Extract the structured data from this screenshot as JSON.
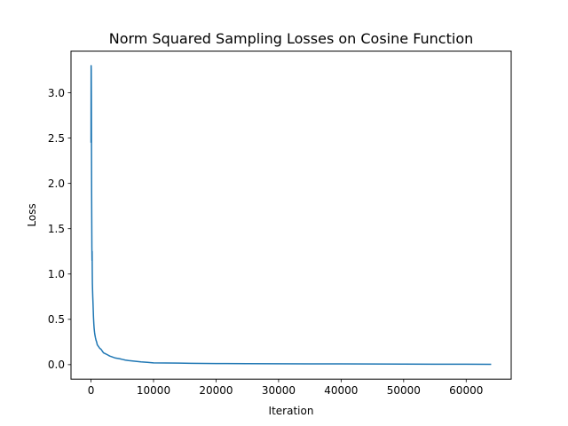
{
  "chart_data": {
    "type": "line",
    "title": "Norm Squared Sampling Losses on Cosine Function",
    "xlabel": "Iteration",
    "ylabel": "Loss",
    "xlim": [
      -3200,
      67200
    ],
    "ylim": [
      -0.16,
      3.46
    ],
    "xticks": [
      0,
      10000,
      20000,
      30000,
      40000,
      50000,
      60000
    ],
    "xtick_labels": [
      "0",
      "10000",
      "20000",
      "30000",
      "40000",
      "50000",
      "60000"
    ],
    "yticks": [
      0.0,
      0.5,
      1.0,
      1.5,
      2.0,
      2.5,
      3.0
    ],
    "ytick_labels": [
      "0.0",
      "0.5",
      "1.0",
      "1.5",
      "2.0",
      "2.5",
      "3.0"
    ],
    "grid": false,
    "legend": "none",
    "series": [
      {
        "color": "#1f77b4",
        "x": [
          0,
          20,
          40,
          60,
          80,
          100,
          120,
          140,
          160,
          180,
          200,
          220,
          250,
          280,
          320,
          360,
          400,
          450,
          500,
          560,
          620,
          700,
          800,
          900,
          1000,
          1200,
          1400,
          1600,
          1800,
          2000,
          2300,
          2600,
          3000,
          3400,
          3800,
          4200,
          4600,
          5000,
          5500,
          6000,
          6500,
          7000,
          8000,
          9000,
          10000,
          12000,
          14000,
          16000,
          18000,
          20000,
          25000,
          30000,
          35000,
          40000,
          45000,
          50000,
          55000,
          60000,
          64000
        ],
        "y": [
          2.45,
          3.3,
          3.25,
          2.95,
          2.4,
          1.9,
          1.6,
          1.3,
          1.15,
          1.25,
          1.05,
          0.9,
          0.82,
          0.75,
          0.68,
          0.6,
          0.52,
          0.45,
          0.4,
          0.36,
          0.33,
          0.3,
          0.27,
          0.25,
          0.22,
          0.2,
          0.18,
          0.17,
          0.15,
          0.13,
          0.12,
          0.11,
          0.095,
          0.085,
          0.075,
          0.07,
          0.065,
          0.058,
          0.05,
          0.045,
          0.042,
          0.038,
          0.03,
          0.025,
          0.02,
          0.018,
          0.017,
          0.015,
          0.013,
          0.012,
          0.011,
          0.01,
          0.009,
          0.008,
          0.007,
          0.006,
          0.005,
          0.005,
          0.004
        ]
      }
    ]
  }
}
